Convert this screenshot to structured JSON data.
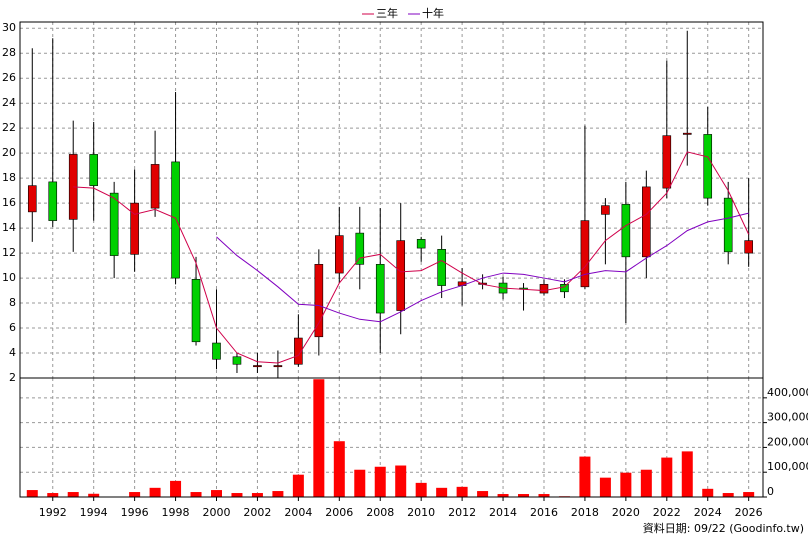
{
  "chart_data": [
    {
      "type": "candlestick",
      "x": [
        1991,
        1992,
        1993,
        1994,
        1995,
        1996,
        1997,
        1998,
        1999,
        2000,
        2001,
        2002,
        2003,
        2004,
        2005,
        2006,
        2007,
        2008,
        2009,
        2010,
        2011,
        2012,
        2013,
        2014,
        2015,
        2016,
        2017,
        2018,
        2019,
        2020,
        2021,
        2022,
        2023,
        2024,
        2025,
        2026
      ],
      "open": [
        15.3,
        17.7,
        14.7,
        19.9,
        16.8,
        11.9,
        15.6,
        19.3,
        9.9,
        4.8,
        3.7,
        2.9,
        2.9,
        3.1,
        5.3,
        10.4,
        13.6,
        11.1,
        7.4,
        13.1,
        12.3,
        9.4,
        9.5,
        9.6,
        9.2,
        8.8,
        9.5,
        9.3,
        15.1,
        15.9,
        11.7,
        17.2,
        21.5,
        21.5,
        16.4,
        12.0
      ],
      "high": [
        28.4,
        29.2,
        22.6,
        22.5,
        17.7,
        18.7,
        21.8,
        24.9,
        11.7,
        9.1,
        4.0,
        4.0,
        4.2,
        7.1,
        12.3,
        15.7,
        15.7,
        15.6,
        16.0,
        13.3,
        13.4,
        10.8,
        10.3,
        10.1,
        9.6,
        9.9,
        9.9,
        22.2,
        16.4,
        17.7,
        18.6,
        27.4,
        29.8,
        23.7,
        17.7,
        18.0
      ],
      "low": [
        12.9,
        14.1,
        12.1,
        14.6,
        10.0,
        10.5,
        14.9,
        9.5,
        4.6,
        2.7,
        2.4,
        2.4,
        2.0,
        2.9,
        3.8,
        9.6,
        9.1,
        4.0,
        5.5,
        11.3,
        8.4,
        7.8,
        9.1,
        8.3,
        7.4,
        8.6,
        8.4,
        9.1,
        11.1,
        6.4,
        10.0,
        16.4,
        19.0,
        15.8,
        11.1,
        10.9
      ],
      "close": [
        17.4,
        14.6,
        19.9,
        17.4,
        11.8,
        16.0,
        19.1,
        10.0,
        4.9,
        3.5,
        3.1,
        3.0,
        3.0,
        5.2,
        11.1,
        13.4,
        11.1,
        7.2,
        13.0,
        12.4,
        9.4,
        9.7,
        9.6,
        8.8,
        9.1,
        9.5,
        8.9,
        14.6,
        15.8,
        11.7,
        17.3,
        21.4,
        21.6,
        16.4,
        12.1,
        13.0
      ],
      "up_color": "#e00000",
      "down_color": "#00d000",
      "series": [
        {
          "name": "三年",
          "color": "#d0004a",
          "values": [
            null,
            null,
            17.3,
            17.2,
            16.4,
            15.1,
            15.5,
            14.8,
            11.2,
            6.0,
            4.0,
            3.3,
            3.2,
            3.8,
            6.4,
            9.6,
            11.6,
            11.9,
            10.5,
            10.6,
            11.4,
            10.4,
            9.5,
            9.2,
            9.1,
            9.0,
            9.3,
            10.9,
            13.0,
            14.2,
            15.1,
            16.8,
            20.1,
            19.7,
            17.0,
            13.5
          ]
        },
        {
          "name": "十年",
          "color": "#8000c0",
          "values": [
            null,
            null,
            null,
            null,
            null,
            null,
            null,
            null,
            null,
            13.3,
            11.8,
            10.6,
            9.3,
            7.9,
            7.8,
            7.2,
            6.7,
            6.5,
            7.3,
            8.2,
            8.9,
            9.4,
            10.0,
            10.4,
            10.3,
            10.0,
            9.7,
            10.3,
            10.6,
            10.5,
            11.6,
            12.6,
            13.8,
            14.5,
            14.8,
            15.2
          ]
        }
      ],
      "xlim": [
        1990.4,
        2026.7
      ],
      "xticks": [
        1992,
        1994,
        1996,
        1998,
        2000,
        2002,
        2004,
        2006,
        2008,
        2010,
        2012,
        2014,
        2016,
        2018,
        2020,
        2022,
        2024,
        2026
      ],
      "ylim": [
        2,
        30.5
      ],
      "yticks": [
        2,
        4,
        6,
        8,
        10,
        12,
        14,
        16,
        18,
        20,
        22,
        24,
        26,
        28,
        30
      ],
      "grid": true
    },
    {
      "type": "bar",
      "x": [
        1991,
        1992,
        1993,
        1994,
        1995,
        1996,
        1997,
        1998,
        1999,
        2000,
        2001,
        2002,
        2003,
        2004,
        2005,
        2006,
        2007,
        2008,
        2009,
        2010,
        2011,
        2012,
        2013,
        2014,
        2015,
        2016,
        2017,
        2018,
        2019,
        2020,
        2021,
        2022,
        2023,
        2024,
        2025,
        2026
      ],
      "values": [
        28000,
        16000,
        20000,
        13000,
        2000,
        20000,
        37000,
        65000,
        20000,
        28000,
        16000,
        16000,
        24000,
        90000,
        475000,
        225000,
        110000,
        122000,
        127000,
        57000,
        37000,
        41000,
        24000,
        12000,
        12000,
        12000,
        3000,
        163000,
        78000,
        98000,
        110000,
        159000,
        184000,
        33000,
        16000,
        20000
      ],
      "color": "#ff0000",
      "xlim": [
        1990.4,
        2026.7
      ],
      "xticks": [
        1992,
        1994,
        1996,
        1998,
        2000,
        2002,
        2004,
        2006,
        2008,
        2010,
        2012,
        2014,
        2016,
        2018,
        2020,
        2022,
        2024,
        2026
      ],
      "ylim": [
        0,
        480000
      ],
      "yticks": [
        0,
        {
          "value": 100000,
          "label": "100,000"
        },
        {
          "value": 200000,
          "label": "200,000"
        },
        {
          "value": 300000,
          "label": "300,000"
        },
        {
          "value": 400000,
          "label": "400,000"
        }
      ],
      "grid": true
    }
  ],
  "footer": "資料日期: 09/22 (Goodinfo.tw)"
}
